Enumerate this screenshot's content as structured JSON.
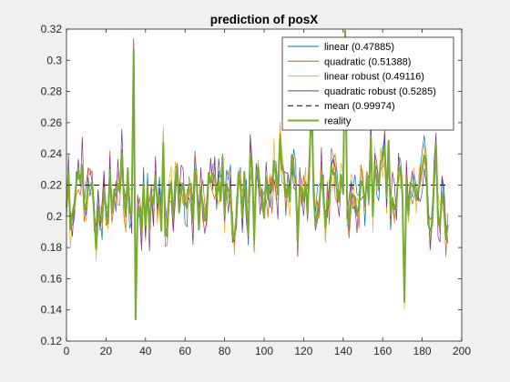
{
  "chart_data": {
    "type": "line",
    "title": "prediction of posX",
    "xlabel": "",
    "ylabel": "",
    "xlim": [
      0,
      200
    ],
    "ylim": [
      0.12,
      0.32
    ],
    "xticks": [
      0,
      20,
      40,
      60,
      80,
      100,
      120,
      140,
      160,
      180,
      200
    ],
    "yticks": [
      0.12,
      0.14,
      0.16,
      0.18,
      0.2,
      0.22,
      0.24,
      0.26,
      0.28,
      0.3,
      0.32
    ],
    "xtick_labels": [
      "0",
      "20",
      "40",
      "60",
      "80",
      "100",
      "120",
      "140",
      "160",
      "180",
      "200"
    ],
    "ytick_labels": [
      "0.12",
      "0.14",
      "0.16",
      "0.18",
      "0.2",
      "0.22",
      "0.24",
      "0.26",
      "0.28",
      "0.3",
      "0.32"
    ],
    "grid": false,
    "legend_position": "top-right",
    "series": [
      {
        "name": "linear (0.47885)",
        "color": "#0072bd",
        "style": "solid",
        "type": "noisy",
        "seed": 11,
        "offset": 0.005,
        "amp": 0.03,
        "x_end": 193
      },
      {
        "name": "quadratic (0.51388)",
        "color": "#d95319",
        "style": "solid",
        "type": "noisy",
        "seed": 23,
        "offset": 0.005,
        "amp": 0.034,
        "x_end": 193
      },
      {
        "name": "linear robust (0.49116)",
        "color": "#edb120",
        "style": "solid",
        "type": "noisy",
        "seed": 37,
        "offset": 0.004,
        "amp": 0.033,
        "x_end": 193
      },
      {
        "name": "quadratic robust (0.5285)",
        "color": "#7e2f8e",
        "style": "solid",
        "type": "noisy",
        "seed": 41,
        "offset": 0.006,
        "amp": 0.036,
        "x_end": 193
      },
      {
        "name": "mean (0.99974)",
        "color": "#000000",
        "style": "dashed",
        "type": "constant",
        "value": 0.22,
        "x_end": 193
      },
      {
        "name": "reality",
        "color": "#77ac30",
        "style": "solid-thick",
        "type": "noisy",
        "seed": 5,
        "offset": 0.0,
        "amp": 0.028,
        "x_end": 193
      }
    ],
    "y_center": 0.215,
    "highlights": [
      {
        "x": 34,
        "y": 0.307
      },
      {
        "x": 35,
        "y": 0.134
      },
      {
        "x": 141,
        "y": 0.319
      },
      {
        "x": 171,
        "y": 0.145
      },
      {
        "x": 124,
        "y": 0.28
      }
    ]
  }
}
